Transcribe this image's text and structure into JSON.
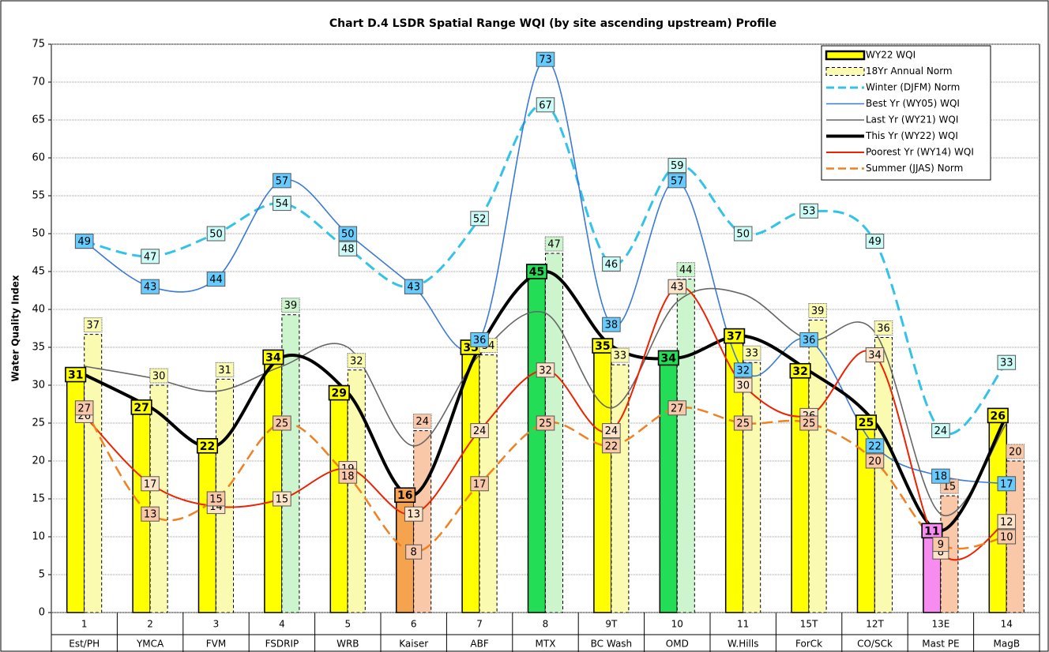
{
  "chart_data": {
    "type": "bar",
    "title": "Chart D.4 LSDR Spatial Range WQI (by site ascending upstream) Profile",
    "y_label": "Water Quality Index",
    "categories": [
      "1",
      "2",
      "3",
      "4",
      "5",
      "6",
      "7",
      "8",
      "9T",
      "10",
      "11",
      "15T",
      "12T",
      "13E",
      "14"
    ],
    "sub_categories": [
      "Est/PH",
      "YMCA",
      "FVM",
      "FSDRIP",
      "WRB",
      "Kaiser",
      "ABF",
      "MTX",
      "BC Wash",
      "OMD",
      "W.Hills",
      "ForCk",
      "CO/SCk",
      "Mast PE",
      "MagB"
    ],
    "ylim": [
      0,
      75
    ],
    "yticks": [
      0,
      5,
      10,
      15,
      20,
      25,
      30,
      35,
      40,
      45,
      50,
      55,
      60,
      65,
      70,
      75
    ],
    "grid": true,
    "series": [
      {
        "name": "WY22 WQI",
        "kind": "bar",
        "color": "#ffff00",
        "colors": [
          "#ffff00",
          "#ffff00",
          "#ffff00",
          "#ffff00",
          "#ffff00",
          "#f6a34f",
          "#ffff00",
          "#22dd55",
          "#ffff00",
          "#22dd55",
          "#ffff00",
          "#ffff00",
          "#ffff00",
          "#f78cf0",
          "#ffff00"
        ],
        "values": [
          31.4,
          27.1,
          22.0,
          33.7,
          29.0,
          15.5,
          35.0,
          45.0,
          35.2,
          33.6,
          36.5,
          31.9,
          25.1,
          10.8,
          26.0
        ],
        "value_labels": [
          "31",
          "27",
          "22",
          "34",
          "29",
          "16",
          "35",
          "45",
          "35",
          "34",
          "37",
          "32",
          "25",
          "11",
          "26"
        ],
        "labels": true
      },
      {
        "name": "18Yr Annual Norm",
        "kind": "bar",
        "dashed": true,
        "color": "#fafab0",
        "colors": [
          "#fafab0",
          "#fafab0",
          "#fafab0",
          "#cdf5cd",
          "#fafab0",
          "#f8c8a8",
          "#fafab0",
          "#cdf5cd",
          "#fafab0",
          "#cdf5cd",
          "#fafab0",
          "#fafab0",
          "#fafab0",
          "#f8c8a8",
          "#f8c8a8"
        ],
        "values": [
          36.7,
          30.0,
          30.8,
          39.3,
          32.0,
          24.0,
          34.0,
          47.4,
          32.7,
          44.0,
          33.0,
          38.6,
          36.3,
          15.4,
          20.0
        ],
        "value_labels": [
          "37",
          "30",
          "31",
          "39",
          "32",
          "24",
          "34",
          "47",
          "33",
          "44",
          "33",
          "39",
          "36",
          "15",
          "20"
        ],
        "labels": true
      },
      {
        "name": "Winter (DJFM) Norm",
        "kind": "line",
        "dashed": true,
        "width": 3,
        "color": "#33c3e8",
        "label_fill": "#ccfcf8",
        "labels": true,
        "values": [
          49,
          47,
          50,
          54,
          48,
          43,
          52,
          67,
          46,
          59,
          50,
          53,
          49,
          24,
          33
        ]
      },
      {
        "name": "Best Yr (WY05) WQI",
        "kind": "line",
        "width": 1.6,
        "color": "#3a7ad8",
        "label_fill": "#66ccff",
        "labels": true,
        "values": [
          49,
          43,
          44,
          57,
          50,
          43,
          36,
          73,
          38,
          57,
          32,
          36,
          22,
          18,
          17
        ]
      },
      {
        "name": "Last Yr (WY21) WQI",
        "kind": "line",
        "width": 1.6,
        "color": "#666666",
        "labels": false,
        "values": [
          32.5,
          31,
          29.2,
          32.5,
          35,
          22,
          34,
          39.5,
          27,
          41,
          42,
          36,
          37,
          13,
          25
        ]
      },
      {
        "name": "This Yr (WY22) WQI",
        "kind": "line",
        "width": 4,
        "color": "#000000",
        "labels": false,
        "values": [
          31.4,
          27.1,
          22.0,
          33.7,
          29.0,
          15.5,
          35.0,
          45.0,
          35.2,
          33.6,
          36.5,
          31.9,
          25.1,
          10.8,
          26.0
        ]
      },
      {
        "name": "Poorest Yr (WY14) WQI",
        "kind": "line",
        "width": 2,
        "color": "#ee2200",
        "label_fill": "#fde4c8",
        "labels": true,
        "values": [
          26,
          17,
          14,
          15,
          19,
          13,
          24,
          32,
          24,
          43,
          30,
          26,
          34,
          8,
          12
        ]
      },
      {
        "name": "Summer (JJAS) Norm",
        "kind": "line",
        "dashed": true,
        "width": 2.5,
        "color": "#f08020",
        "label_fill": "#f8c8a8",
        "labels": true,
        "values": [
          27,
          13,
          15,
          25,
          18,
          8,
          17,
          25,
          22,
          27,
          25,
          25,
          20,
          9,
          10
        ]
      }
    ]
  }
}
